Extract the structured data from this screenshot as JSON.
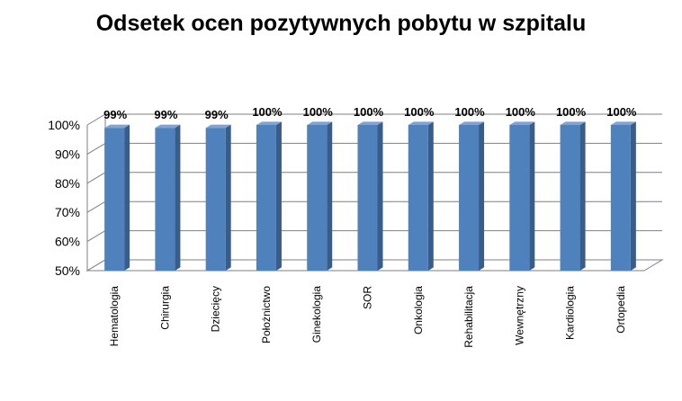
{
  "chart_data": {
    "type": "bar",
    "title": "Odsetek ocen pozytywnych pobytu w szpitalu",
    "categories": [
      "Hematologia",
      "Chirurgia",
      "Dziecięcy",
      "Położnictwo",
      "Ginekologia",
      "SOR",
      "Onkologia",
      "Rehabilitacja",
      "Wewnętrzny",
      "Kardiologia",
      "Ortopedia"
    ],
    "values": [
      99,
      99,
      99,
      100,
      100,
      100,
      100,
      100,
      100,
      100,
      100
    ],
    "data_labels": [
      "99%",
      "99%",
      "99%",
      "100%",
      "100%",
      "100%",
      "100%",
      "100%",
      "100%",
      "100%",
      "100%"
    ],
    "ylim": [
      50,
      100
    ],
    "yticks": [
      50,
      60,
      70,
      80,
      90,
      100
    ],
    "ytick_labels": [
      "50%",
      "60%",
      "70%",
      "80%",
      "90%",
      "100%"
    ],
    "xlabel": "",
    "ylabel": "",
    "grid": true,
    "legend": "none",
    "style": "3d-column",
    "colors": {
      "bar_front": "#4f81bd",
      "bar_side": "#385d8a",
      "bar_top": "#7ea3d6",
      "grid": "#7f7f7f",
      "axis": "#7f7f7f"
    }
  }
}
